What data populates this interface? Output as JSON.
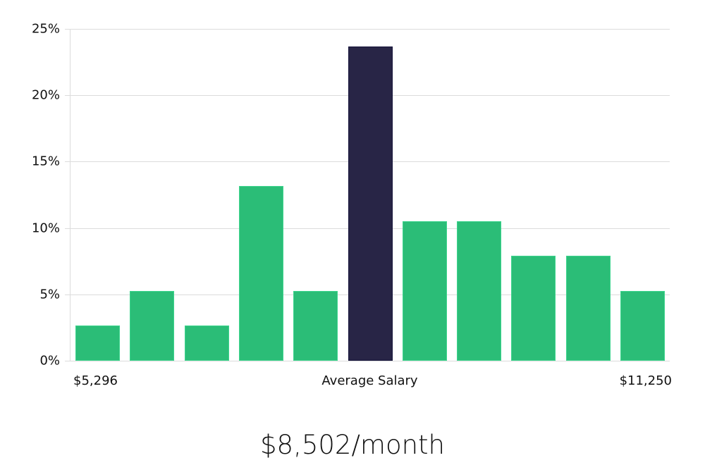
{
  "chart_data": {
    "type": "bar",
    "title": "",
    "xlabel": "Average Salary",
    "ylabel": "",
    "ylim": [
      0,
      25
    ],
    "yticks": [
      "0%",
      "5%",
      "10%",
      "15%",
      "20%",
      "25%"
    ],
    "grid": true,
    "x_range_labels": {
      "min": "$5,296",
      "center": "Average Salary",
      "max": "$11,250"
    },
    "categories": [
      "bin1",
      "bin2",
      "bin3",
      "bin4",
      "bin5",
      "bin6",
      "bin7",
      "bin8",
      "bin9",
      "bin10",
      "bin11"
    ],
    "values": [
      2.63,
      5.26,
      2.63,
      13.16,
      5.26,
      23.68,
      10.53,
      10.53,
      7.89,
      7.89,
      5.26
    ],
    "highlight_index": 5,
    "colors": {
      "bar": "#2bbd77",
      "highlight": "#282546",
      "grid": "#dcdcdc"
    }
  },
  "labels": {
    "min_salary": "$5,296",
    "axis_title": "Average Salary",
    "max_salary": "$11,250",
    "average": "$8,502/month"
  }
}
